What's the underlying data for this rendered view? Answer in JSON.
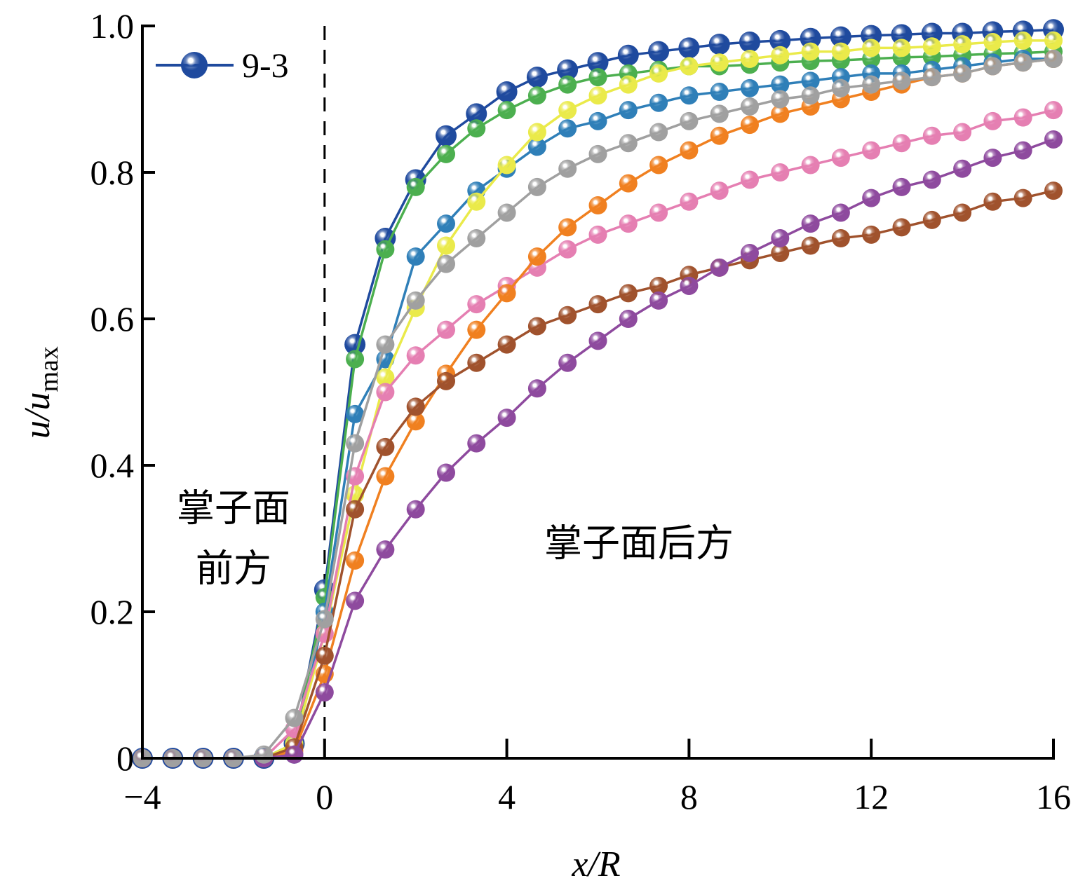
{
  "chart_data": {
    "type": "line",
    "title": "",
    "xlabel": "x/R",
    "ylabel_main": "u/u",
    "ylabel_sub": "max",
    "xlim": [
      -4,
      16
    ],
    "ylim": [
      0,
      1.0
    ],
    "xticks": [
      -4,
      0,
      4,
      8,
      12,
      16
    ],
    "xtick_labels": [
      "−4",
      "0",
      "4",
      "8",
      "12",
      "16"
    ],
    "yticks": [
      0,
      0.2,
      0.4,
      0.6,
      0.8,
      1.0
    ],
    "ytick_labels": [
      "0",
      "0.2",
      "0.4",
      "0.6",
      "0.8",
      "1.0"
    ],
    "grid": false,
    "legend_placement": "top-left",
    "reference_line_x": 0,
    "annotations": [
      {
        "lines": [
          "掌子面",
          "前方"
        ],
        "x": -2,
        "y": 0.3
      },
      {
        "lines": [
          "掌子面后方"
        ],
        "x": 6.9,
        "y": 0.3
      }
    ],
    "x": [
      -4,
      -3.333,
      -2.667,
      -2,
      -1.333,
      -0.667,
      0,
      0.667,
      1.333,
      2,
      2.667,
      3.333,
      4,
      4.667,
      5.333,
      6,
      6.667,
      7.333,
      8,
      8.667,
      9.333,
      10,
      10.667,
      11.333,
      12,
      12.667,
      13.333,
      14,
      14.667,
      15.333,
      16
    ],
    "series": [
      {
        "name": "9-3",
        "color": "#1f4a9e",
        "legend": true,
        "values": [
          0,
          0,
          0,
          0,
          0,
          0.02,
          0.23,
          0.565,
          0.71,
          0.79,
          0.85,
          0.88,
          0.91,
          0.93,
          0.94,
          0.95,
          0.96,
          0.965,
          0.97,
          0.975,
          0.978,
          0.98,
          0.983,
          0.985,
          0.987,
          0.988,
          0.99,
          0.99,
          0.992,
          0.993,
          0.995
        ]
      },
      {
        "name": "",
        "color": "#4caf4f",
        "values": [
          0,
          0,
          0,
          0,
          0,
          0.02,
          0.22,
          0.545,
          0.695,
          0.78,
          0.825,
          0.86,
          0.885,
          0.905,
          0.92,
          0.93,
          0.935,
          0.94,
          0.945,
          0.945,
          0.947,
          0.95,
          0.952,
          0.953,
          0.955,
          0.957,
          0.958,
          0.96,
          0.962,
          0.963,
          0.965
        ]
      },
      {
        "name": "",
        "color": "#2f7fb8",
        "values": [
          0,
          0,
          0,
          0,
          0,
          0.005,
          0.2,
          0.47,
          0.545,
          0.685,
          0.73,
          0.775,
          0.805,
          0.835,
          0.86,
          0.87,
          0.885,
          0.895,
          0.905,
          0.91,
          0.915,
          0.92,
          0.925,
          0.93,
          0.935,
          0.935,
          0.94,
          0.945,
          0.95,
          0.955,
          0.955
        ]
      },
      {
        "name": "",
        "color": "#eaea4a",
        "values": [
          0,
          0,
          0,
          0,
          0,
          0.02,
          0.17,
          0.36,
          0.52,
          0.615,
          0.7,
          0.76,
          0.81,
          0.855,
          0.885,
          0.905,
          0.92,
          0.935,
          0.945,
          0.95,
          0.955,
          0.96,
          0.965,
          0.965,
          0.97,
          0.97,
          0.972,
          0.975,
          0.978,
          0.98,
          0.98
        ]
      },
      {
        "name": "",
        "color": "#e57fb2",
        "values": [
          0,
          0,
          0,
          0,
          0,
          0.04,
          0.17,
          0.385,
          0.5,
          0.55,
          0.585,
          0.62,
          0.645,
          0.67,
          0.695,
          0.715,
          0.73,
          0.745,
          0.76,
          0.775,
          0.79,
          0.8,
          0.81,
          0.82,
          0.83,
          0.84,
          0.85,
          0.855,
          0.87,
          0.875,
          0.885
        ]
      },
      {
        "name": "",
        "color": "#f08020",
        "values": [
          0,
          0,
          0,
          0,
          0,
          0.01,
          0.115,
          0.27,
          0.385,
          0.46,
          0.525,
          0.585,
          0.635,
          0.685,
          0.725,
          0.755,
          0.785,
          0.81,
          0.83,
          0.85,
          0.865,
          0.88,
          0.89,
          0.9,
          0.91,
          0.92,
          0.93,
          0.935,
          0.945,
          0.95,
          0.955
        ]
      },
      {
        "name": "",
        "color": "#a0522d",
        "values": [
          0,
          0,
          0,
          0,
          0,
          0.015,
          0.14,
          0.34,
          0.425,
          0.48,
          0.515,
          0.54,
          0.565,
          0.59,
          0.605,
          0.62,
          0.635,
          0.645,
          0.66,
          0.67,
          0.68,
          0.69,
          0.7,
          0.71,
          0.715,
          0.725,
          0.735,
          0.745,
          0.76,
          0.765,
          0.775
        ]
      },
      {
        "name": "",
        "color": "#8e4a9e",
        "values": [
          0,
          0,
          0,
          0,
          0,
          0.005,
          0.09,
          0.215,
          0.285,
          0.34,
          0.39,
          0.43,
          0.465,
          0.505,
          0.54,
          0.57,
          0.6,
          0.625,
          0.645,
          0.67,
          0.69,
          0.71,
          0.73,
          0.745,
          0.765,
          0.78,
          0.79,
          0.805,
          0.82,
          0.83,
          0.845
        ]
      },
      {
        "name": "",
        "color": "#a0a0a0",
        "values": [
          0,
          0,
          0,
          0,
          0.005,
          0.055,
          0.19,
          0.43,
          0.565,
          0.625,
          0.675,
          0.71,
          0.745,
          0.78,
          0.805,
          0.825,
          0.84,
          0.855,
          0.87,
          0.88,
          0.89,
          0.9,
          0.905,
          0.915,
          0.92,
          0.925,
          0.93,
          0.935,
          0.945,
          0.95,
          0.955
        ]
      }
    ]
  }
}
